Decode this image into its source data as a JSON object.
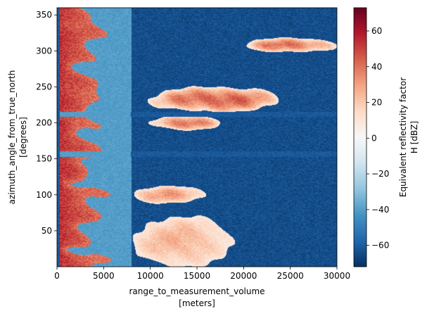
{
  "chart_data": {
    "type": "heatmap",
    "title": "",
    "xlabel": "range_to_measurement_volume",
    "xunits": "[meters]",
    "ylabel": "azimuth_angle_from_true_north",
    "yunits": "[degrees]",
    "xlim": [
      0,
      30000
    ],
    "ylim": [
      0,
      360
    ],
    "xticks": [
      0,
      5000,
      10000,
      15000,
      20000,
      25000,
      30000
    ],
    "yticks": [
      50,
      100,
      150,
      200,
      250,
      300,
      350
    ],
    "colorbar": {
      "label_line1": "Equivalent reflectivity factor",
      "label_line2": "H [dBZ]",
      "cmap": "RdBu_r",
      "vmin": -72,
      "vmax": 73,
      "ticks": [
        -60,
        -40,
        -20,
        0,
        20,
        40,
        60
      ]
    },
    "features": {
      "gate_spacing_m": 150,
      "ray_spacing_deg": 1,
      "background_dbz": -64,
      "blind_range_m": [
        0,
        300
      ],
      "near_blocked_band": {
        "range_m": [
          300,
          7900
        ],
        "dbz": -40
      },
      "beam_block_sectors_deg": [
        [
          153,
          160
        ],
        [
          208,
          215
        ]
      ],
      "echo_regions": [
        {
          "range_m": [
            300,
            8000
          ],
          "azimuth_deg": [
            0,
            360
          ],
          "peak_dbz": 55
        },
        {
          "range_m": [
            8000,
            18500
          ],
          "azimuth_deg": [
            0,
            70
          ],
          "peak_dbz": 25
        },
        {
          "range_m": [
            10000,
            24000
          ],
          "azimuth_deg": [
            215,
            250
          ],
          "peak_dbz": 45
        },
        {
          "range_m": [
            10000,
            17500
          ],
          "azimuth_deg": [
            190,
            210
          ],
          "peak_dbz": 40
        },
        {
          "range_m": [
            8000,
            16000
          ],
          "azimuth_deg": [
            88,
            112
          ],
          "peak_dbz": 30
        },
        {
          "range_m": [
            20000,
            30000
          ],
          "azimuth_deg": [
            298,
            318
          ],
          "peak_dbz": 40
        }
      ]
    }
  }
}
